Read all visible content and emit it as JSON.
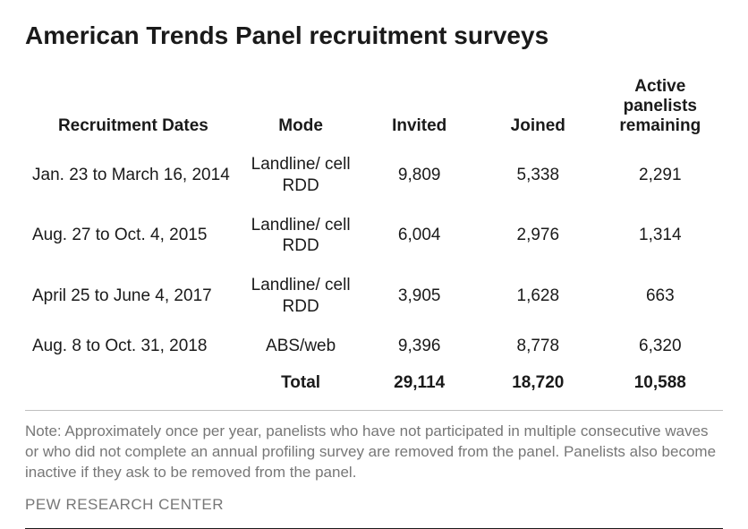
{
  "title": "American Trends Panel recruitment surveys",
  "columns": {
    "dates": "Recruitment Dates",
    "mode": "Mode",
    "invited": "Invited",
    "joined": "Joined",
    "remaining": "Active panelists remaining"
  },
  "rows": [
    {
      "dates": "Jan. 23 to March 16, 2014",
      "mode": "Landline/ cell RDD",
      "invited": "9,809",
      "joined": "5,338",
      "remaining": "2,291"
    },
    {
      "dates": "Aug. 27 to Oct. 4, 2015",
      "mode": "Landline/ cell RDD",
      "invited": "6,004",
      "joined": "2,976",
      "remaining": "1,314"
    },
    {
      "dates": "April 25 to June 4, 2017",
      "mode": "Landline/ cell RDD",
      "invited": "3,905",
      "joined": "1,628",
      "remaining": "663"
    },
    {
      "dates": "Aug. 8 to Oct. 31, 2018",
      "mode": "ABS/web",
      "invited": "9,396",
      "joined": "8,778",
      "remaining": "6,320"
    }
  ],
  "total": {
    "label": "Total",
    "invited": "29,114",
    "joined": "18,720",
    "remaining": "10,588"
  },
  "note": "Note: Approximately once per year, panelists who have not participated in multiple consecutive waves or who did not complete an annual profiling survey are removed from the panel. Panelists also become inactive if they ask to be removed from the panel.",
  "source": "PEW RESEARCH CENTER",
  "style": {
    "title_font": "Arial",
    "title_fontsize": 28,
    "title_weight": "bold",
    "title_color": "#1a1a1a",
    "body_font": "Arial",
    "cell_fontsize": 19,
    "note_fontsize": 17,
    "note_color": "#777777",
    "divider_color": "#bfbfbf",
    "rule_color": "#1a1a1a",
    "background": "#ffffff",
    "col_widths_pct": [
      31,
      17,
      17,
      17,
      18
    ]
  }
}
